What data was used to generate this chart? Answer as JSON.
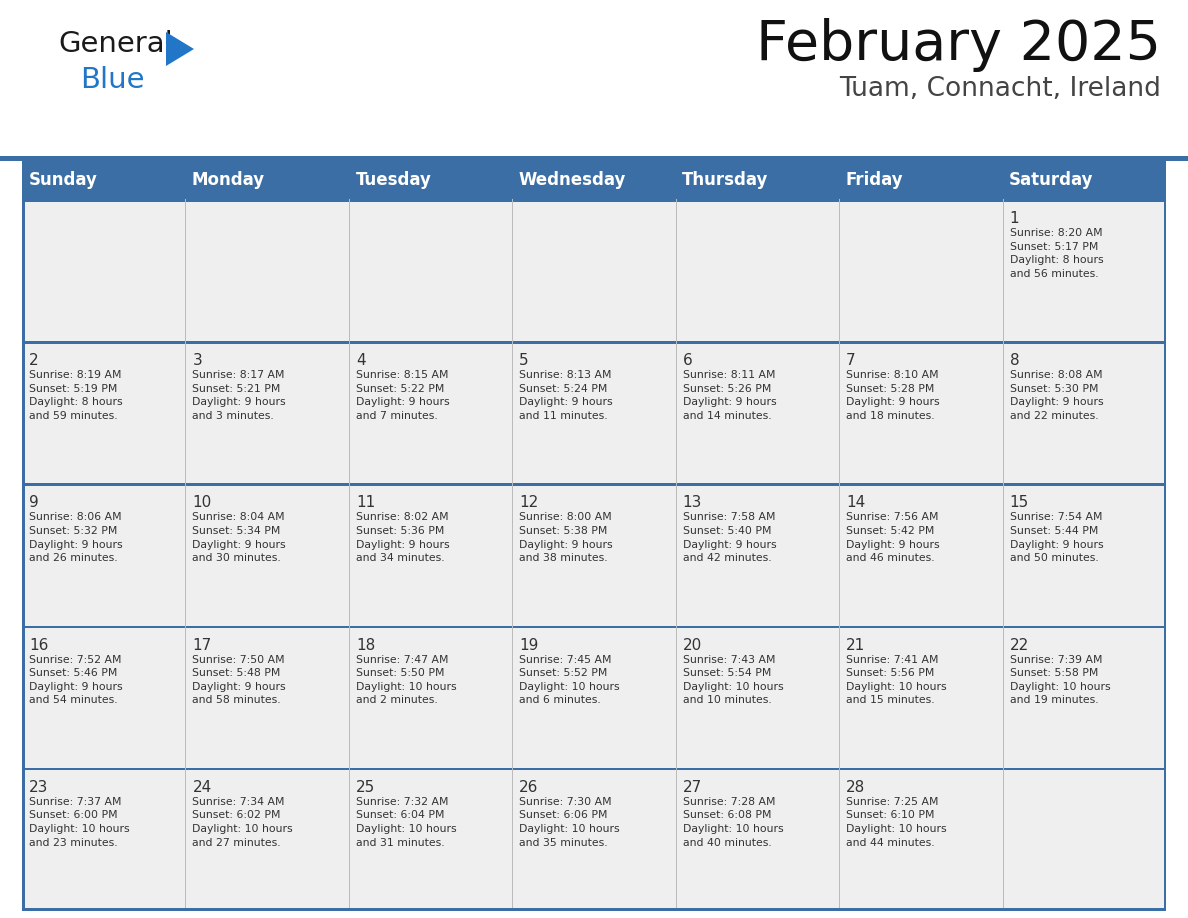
{
  "title": "February 2025",
  "subtitle": "Tuam, Connacht, Ireland",
  "header_bg": "#3A6EA5",
  "header_text": "#FFFFFF",
  "cell_bg_light": "#EFEFEF",
  "border_color": "#3A6EA5",
  "text_color": "#333333",
  "days_of_week": [
    "Sunday",
    "Monday",
    "Tuesday",
    "Wednesday",
    "Thursday",
    "Friday",
    "Saturday"
  ],
  "logo_color1": "#1a1a1a",
  "logo_color2": "#2176C7",
  "weeks": [
    [
      {
        "day": "",
        "info": ""
      },
      {
        "day": "",
        "info": ""
      },
      {
        "day": "",
        "info": ""
      },
      {
        "day": "",
        "info": ""
      },
      {
        "day": "",
        "info": ""
      },
      {
        "day": "",
        "info": ""
      },
      {
        "day": "1",
        "info": "Sunrise: 8:20 AM\nSunset: 5:17 PM\nDaylight: 8 hours\nand 56 minutes."
      }
    ],
    [
      {
        "day": "2",
        "info": "Sunrise: 8:19 AM\nSunset: 5:19 PM\nDaylight: 8 hours\nand 59 minutes."
      },
      {
        "day": "3",
        "info": "Sunrise: 8:17 AM\nSunset: 5:21 PM\nDaylight: 9 hours\nand 3 minutes."
      },
      {
        "day": "4",
        "info": "Sunrise: 8:15 AM\nSunset: 5:22 PM\nDaylight: 9 hours\nand 7 minutes."
      },
      {
        "day": "5",
        "info": "Sunrise: 8:13 AM\nSunset: 5:24 PM\nDaylight: 9 hours\nand 11 minutes."
      },
      {
        "day": "6",
        "info": "Sunrise: 8:11 AM\nSunset: 5:26 PM\nDaylight: 9 hours\nand 14 minutes."
      },
      {
        "day": "7",
        "info": "Sunrise: 8:10 AM\nSunset: 5:28 PM\nDaylight: 9 hours\nand 18 minutes."
      },
      {
        "day": "8",
        "info": "Sunrise: 8:08 AM\nSunset: 5:30 PM\nDaylight: 9 hours\nand 22 minutes."
      }
    ],
    [
      {
        "day": "9",
        "info": "Sunrise: 8:06 AM\nSunset: 5:32 PM\nDaylight: 9 hours\nand 26 minutes."
      },
      {
        "day": "10",
        "info": "Sunrise: 8:04 AM\nSunset: 5:34 PM\nDaylight: 9 hours\nand 30 minutes."
      },
      {
        "day": "11",
        "info": "Sunrise: 8:02 AM\nSunset: 5:36 PM\nDaylight: 9 hours\nand 34 minutes."
      },
      {
        "day": "12",
        "info": "Sunrise: 8:00 AM\nSunset: 5:38 PM\nDaylight: 9 hours\nand 38 minutes."
      },
      {
        "day": "13",
        "info": "Sunrise: 7:58 AM\nSunset: 5:40 PM\nDaylight: 9 hours\nand 42 minutes."
      },
      {
        "day": "14",
        "info": "Sunrise: 7:56 AM\nSunset: 5:42 PM\nDaylight: 9 hours\nand 46 minutes."
      },
      {
        "day": "15",
        "info": "Sunrise: 7:54 AM\nSunset: 5:44 PM\nDaylight: 9 hours\nand 50 minutes."
      }
    ],
    [
      {
        "day": "16",
        "info": "Sunrise: 7:52 AM\nSunset: 5:46 PM\nDaylight: 9 hours\nand 54 minutes."
      },
      {
        "day": "17",
        "info": "Sunrise: 7:50 AM\nSunset: 5:48 PM\nDaylight: 9 hours\nand 58 minutes."
      },
      {
        "day": "18",
        "info": "Sunrise: 7:47 AM\nSunset: 5:50 PM\nDaylight: 10 hours\nand 2 minutes."
      },
      {
        "day": "19",
        "info": "Sunrise: 7:45 AM\nSunset: 5:52 PM\nDaylight: 10 hours\nand 6 minutes."
      },
      {
        "day": "20",
        "info": "Sunrise: 7:43 AM\nSunset: 5:54 PM\nDaylight: 10 hours\nand 10 minutes."
      },
      {
        "day": "21",
        "info": "Sunrise: 7:41 AM\nSunset: 5:56 PM\nDaylight: 10 hours\nand 15 minutes."
      },
      {
        "day": "22",
        "info": "Sunrise: 7:39 AM\nSunset: 5:58 PM\nDaylight: 10 hours\nand 19 minutes."
      }
    ],
    [
      {
        "day": "23",
        "info": "Sunrise: 7:37 AM\nSunset: 6:00 PM\nDaylight: 10 hours\nand 23 minutes."
      },
      {
        "day": "24",
        "info": "Sunrise: 7:34 AM\nSunset: 6:02 PM\nDaylight: 10 hours\nand 27 minutes."
      },
      {
        "day": "25",
        "info": "Sunrise: 7:32 AM\nSunset: 6:04 PM\nDaylight: 10 hours\nand 31 minutes."
      },
      {
        "day": "26",
        "info": "Sunrise: 7:30 AM\nSunset: 6:06 PM\nDaylight: 10 hours\nand 35 minutes."
      },
      {
        "day": "27",
        "info": "Sunrise: 7:28 AM\nSunset: 6:08 PM\nDaylight: 10 hours\nand 40 minutes."
      },
      {
        "day": "28",
        "info": "Sunrise: 7:25 AM\nSunset: 6:10 PM\nDaylight: 10 hours\nand 44 minutes."
      },
      {
        "day": "",
        "info": ""
      }
    ]
  ]
}
